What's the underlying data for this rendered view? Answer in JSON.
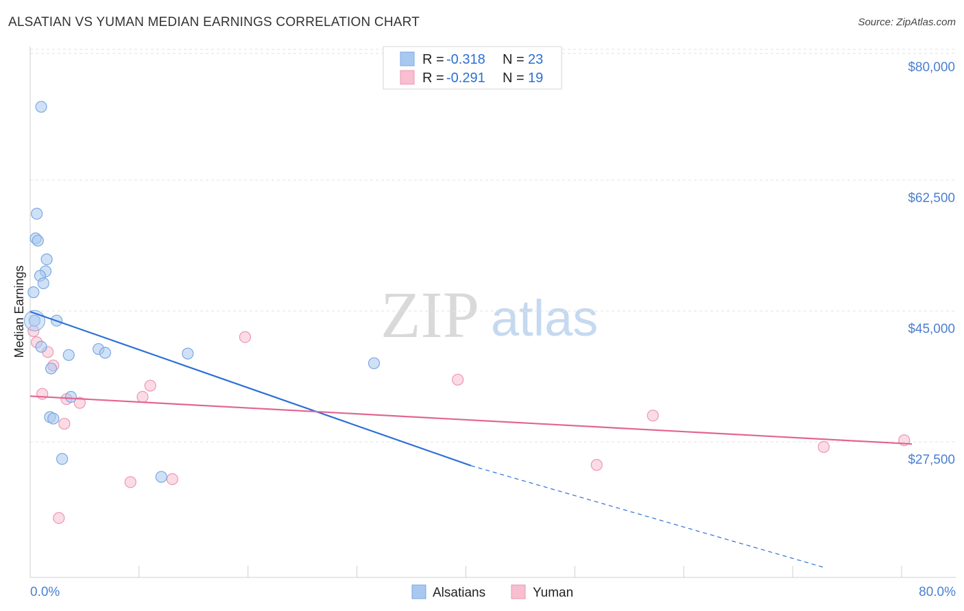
{
  "title": "ALSATIAN VS YUMAN MEDIAN EARNINGS CORRELATION CHART",
  "source": "Source: ZipAtlas.com",
  "watermark": {
    "zip": "ZIP",
    "atlas": "atlas"
  },
  "colors": {
    "alsatians_fill": "#a9c8f0",
    "alsatians_stroke": "#7aa8e0",
    "alsatians_line": "#2b6fd6",
    "yuman_fill": "#f7bfd0",
    "yuman_stroke": "#ec96b2",
    "yuman_line": "#e26592",
    "tick_text": "#4a7fd0"
  },
  "legend": {
    "rows": [
      {
        "r_label": "R = ",
        "r_value": "-0.318",
        "n_label": "N = ",
        "n_value": "23"
      },
      {
        "r_label": "R = ",
        "r_value": "-0.291",
        "n_label": "N = ",
        "n_value": "19"
      }
    ]
  },
  "chart_data": {
    "type": "scatter",
    "title": "ALSATIAN VS YUMAN MEDIAN EARNINGS CORRELATION CHART",
    "xlabel": "",
    "ylabel": "Median Earnings",
    "xlim": [
      0,
      80
    ],
    "ylim": [
      12500,
      84000
    ],
    "x_tick_labels": [
      "0.0%",
      "80.0%"
    ],
    "y_ticks": [
      {
        "value": 80000,
        "label": "$80,000"
      },
      {
        "value": 62500,
        "label": "$62,500"
      },
      {
        "value": 45000,
        "label": "$45,000"
      },
      {
        "value": 27500,
        "label": "$27,500"
      }
    ],
    "grid": true,
    "series": [
      {
        "name": "Alsatians",
        "points": [
          [
            1.0,
            74600
          ],
          [
            0.4,
            46000
          ],
          [
            0.6,
            60300
          ],
          [
            0.5,
            57000
          ],
          [
            0.7,
            56700
          ],
          [
            1.5,
            54200
          ],
          [
            1.4,
            52600
          ],
          [
            0.9,
            52000
          ],
          [
            1.2,
            51000
          ],
          [
            0.3,
            49800
          ],
          [
            2.4,
            46000
          ],
          [
            1.0,
            42500
          ],
          [
            3.5,
            41400
          ],
          [
            6.2,
            42200
          ],
          [
            6.8,
            41700
          ],
          [
            14.3,
            41600
          ],
          [
            1.9,
            39600
          ],
          [
            3.7,
            35800
          ],
          [
            1.8,
            33100
          ],
          [
            2.1,
            32900
          ],
          [
            2.9,
            27500
          ],
          [
            11.9,
            25100
          ],
          [
            31.2,
            40300
          ]
        ],
        "trend": {
          "x0": 0,
          "y0": 47200,
          "x1": 40,
          "y1": 26600,
          "solid_until": 40,
          "dashed_to_x": 72,
          "dashed_to_y": 13000
        }
      },
      {
        "name": "Yuman",
        "points": [
          [
            0.3,
            44600
          ],
          [
            0.6,
            43100
          ],
          [
            1.6,
            41800
          ],
          [
            2.1,
            40000
          ],
          [
            1.1,
            36200
          ],
          [
            3.3,
            35500
          ],
          [
            4.5,
            35000
          ],
          [
            3.1,
            32200
          ],
          [
            10.2,
            35800
          ],
          [
            10.9,
            37300
          ],
          [
            19.5,
            43800
          ],
          [
            9.1,
            24400
          ],
          [
            12.9,
            24800
          ],
          [
            2.6,
            19600
          ],
          [
            38.8,
            38100
          ],
          [
            51.4,
            26700
          ],
          [
            56.5,
            33300
          ],
          [
            72.0,
            29100
          ],
          [
            79.3,
            30000
          ]
        ],
        "trend": {
          "x0": 0,
          "y0": 35900,
          "x1": 80,
          "y1": 29500
        }
      }
    ]
  },
  "bottom_legend": [
    {
      "label": "Alsatians"
    },
    {
      "label": "Yuman"
    }
  ]
}
